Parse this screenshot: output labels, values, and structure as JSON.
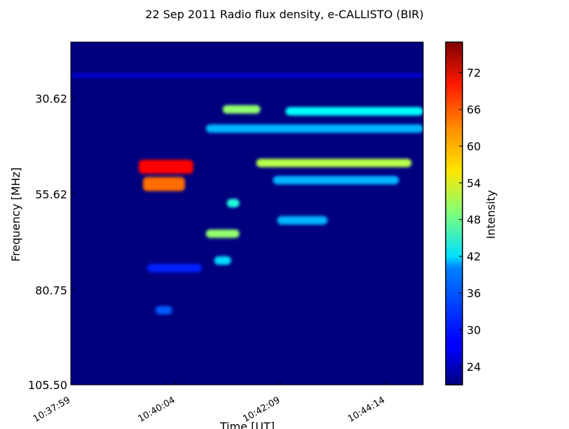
{
  "chart_data": {
    "type": "heatmap",
    "title": "22 Sep 2011  Radio flux density, e-CALLISTO (BIR)",
    "xlabel": "Time [UT]",
    "ylabel": "Frequency [MHz]",
    "x_tick_labels": [
      "10:37:59",
      "10:40:04",
      "10:42:09",
      "10:44:14"
    ],
    "y_tick_labels": [
      "30.62",
      "55.62",
      "80.75",
      "105.50"
    ],
    "colorbar": {
      "label": "Intensity",
      "ticks": [
        "24",
        "30",
        "36",
        "42",
        "48",
        "54",
        "60",
        "66",
        "72"
      ],
      "range": [
        21,
        77
      ]
    },
    "colormap": "jet",
    "background_intensity": 21,
    "x_axis": {
      "start": "10:37:59",
      "end": "10:44:59"
    },
    "y_axis": {
      "top_mhz": 15.9,
      "bottom_mhz": 105.5,
      "inverted": true
    },
    "features": [
      {
        "name": "type II burst lane 1",
        "t_start": "10:39:20",
        "t_end": "10:40:25",
        "f_mhz": 48.5,
        "intensity": 70
      },
      {
        "name": "type II burst lane 2",
        "t_start": "10:39:25",
        "t_end": "10:40:15",
        "f_mhz": 53.0,
        "intensity": 64
      },
      {
        "name": "drifting emission",
        "t_start": "10:41:05",
        "t_end": "10:41:20",
        "f_mhz": 58.0,
        "intensity": 44
      },
      {
        "name": "drifting emission",
        "t_start": "10:40:40",
        "t_end": "10:41:20",
        "f_mhz": 66.0,
        "intensity": 50
      },
      {
        "name": "drifting emission",
        "t_start": "10:40:50",
        "t_end": "10:41:10",
        "f_mhz": 73.0,
        "intensity": 40
      },
      {
        "name": "band",
        "t_start": "10:41:00",
        "t_end": "10:41:45",
        "f_mhz": 33.5,
        "intensity": 50
      },
      {
        "name": "band",
        "t_start": "10:42:15",
        "t_end": "10:44:59",
        "f_mhz": 34.0,
        "intensity": 42
      },
      {
        "name": "band",
        "t_start": "10:40:40",
        "t_end": "10:44:59",
        "f_mhz": 38.5,
        "intensity": 38
      },
      {
        "name": "band",
        "t_start": "10:41:40",
        "t_end": "10:44:45",
        "f_mhz": 47.5,
        "intensity": 52
      },
      {
        "name": "band",
        "t_start": "10:42:00",
        "t_end": "10:44:30",
        "f_mhz": 52.0,
        "intensity": 38
      },
      {
        "name": "patch",
        "t_start": "10:42:05",
        "t_end": "10:43:05",
        "f_mhz": 62.5,
        "intensity": 38
      },
      {
        "name": "faint",
        "t_start": "10:39:30",
        "t_end": "10:40:35",
        "f_mhz": 75.0,
        "intensity": 30
      },
      {
        "name": "faint",
        "t_start": "10:39:40",
        "t_end": "10:40:00",
        "f_mhz": 86.0,
        "intensity": 33
      },
      {
        "name": "line",
        "t_start": "10:37:59",
        "t_end": "10:44:59",
        "f_mhz": 24.6,
        "intensity": 28
      }
    ]
  }
}
